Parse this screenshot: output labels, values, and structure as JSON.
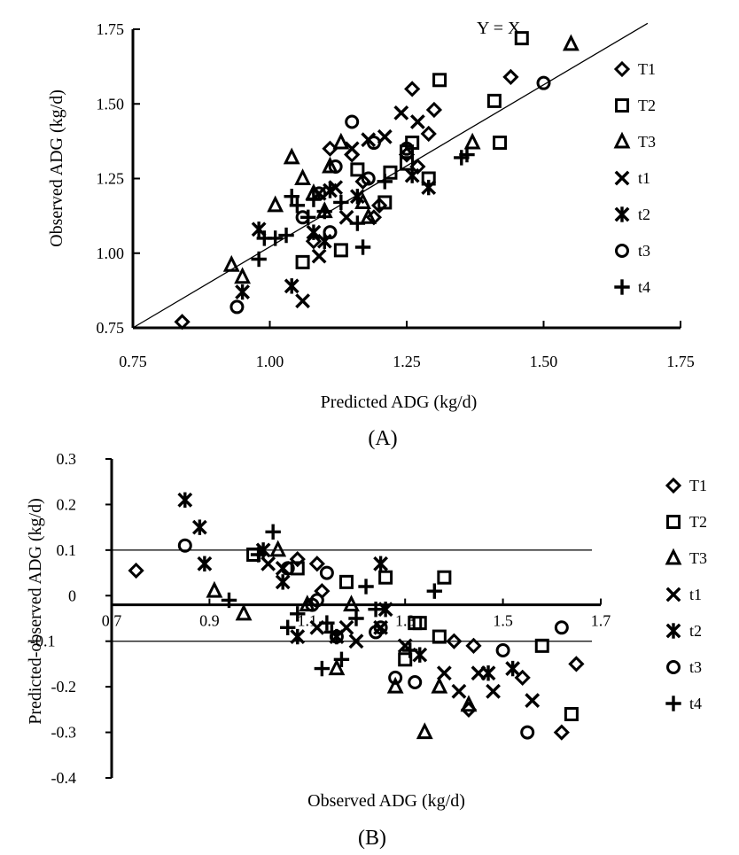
{
  "chart_data": [
    {
      "type": "scatter",
      "panel_label": "(A)",
      "xlabel": "Predicted ADG (kg/d)",
      "ylabel": "Observed ADG (kg/d)",
      "xlim": [
        0.75,
        1.75
      ],
      "ylim": [
        0.75,
        1.75
      ],
      "xticks": [
        "0.75",
        "1.00",
        "1.25",
        "1.50",
        "1.75"
      ],
      "yticks": [
        "0.75",
        "1.00",
        "1.25",
        "1.50",
        "1.75"
      ],
      "grid": false,
      "legend_position": "right",
      "reference_line": {
        "label": "Y = X",
        "slope": 1,
        "intercept": 0
      },
      "series": [
        {
          "name": "T1",
          "marker": "diamond",
          "x": [
            0.84,
            1.11,
            1.15,
            1.17,
            1.19,
            1.26,
            1.27,
            1.25,
            1.29,
            1.3,
            1.44,
            1.08,
            1.2
          ],
          "y": [
            0.77,
            1.35,
            1.33,
            1.24,
            1.12,
            1.55,
            1.29,
            1.33,
            1.4,
            1.48,
            1.59,
            1.04,
            1.16
          ]
        },
        {
          "name": "T2",
          "marker": "square",
          "x": [
            1.06,
            1.13,
            1.16,
            1.21,
            1.22,
            1.25,
            1.25,
            1.26,
            1.29,
            1.31,
            1.41,
            1.42,
            1.46
          ],
          "y": [
            0.97,
            1.01,
            1.28,
            1.17,
            1.27,
            1.3,
            1.34,
            1.37,
            1.25,
            1.58,
            1.51,
            1.37,
            1.72
          ]
        },
        {
          "name": "T3",
          "marker": "triangle",
          "x": [
            0.93,
            0.95,
            1.01,
            1.04,
            1.06,
            1.08,
            1.11,
            1.13,
            1.17,
            1.18,
            1.37,
            1.55,
            1.1
          ],
          "y": [
            0.96,
            0.92,
            1.16,
            1.32,
            1.25,
            1.2,
            1.29,
            1.37,
            1.17,
            1.12,
            1.37,
            1.7,
            1.14
          ]
        },
        {
          "name": "t1",
          "marker": "x",
          "x": [
            1.06,
            1.09,
            1.12,
            1.15,
            1.18,
            1.21,
            1.24,
            1.27,
            1.09,
            1.14
          ],
          "y": [
            0.84,
            0.99,
            1.22,
            1.35,
            1.38,
            1.39,
            1.47,
            1.44,
            1.2,
            1.12
          ]
        },
        {
          "name": "t2",
          "marker": "asterisk",
          "x": [
            0.95,
            0.98,
            1.04,
            1.08,
            1.11,
            1.26,
            1.29,
            1.16,
            1.1
          ],
          "y": [
            0.87,
            1.08,
            0.89,
            1.07,
            1.21,
            1.26,
            1.22,
            1.19,
            1.04
          ]
        },
        {
          "name": "t3",
          "marker": "circle",
          "x": [
            0.94,
            1.09,
            1.11,
            1.12,
            1.15,
            1.18,
            1.19,
            1.25,
            1.5,
            1.06
          ],
          "y": [
            0.82,
            1.2,
            1.07,
            1.29,
            1.44,
            1.25,
            1.37,
            1.35,
            1.57,
            1.12
          ]
        },
        {
          "name": "t4",
          "marker": "plus",
          "x": [
            0.98,
            0.99,
            1.01,
            1.03,
            1.04,
            1.05,
            1.07,
            1.1,
            1.13,
            1.17,
            1.21,
            1.35,
            1.36,
            1.08,
            1.16
          ],
          "y": [
            0.98,
            1.05,
            1.05,
            1.06,
            1.19,
            1.16,
            1.12,
            1.14,
            1.17,
            1.02,
            1.24,
            1.32,
            1.33,
            1.18,
            1.1
          ]
        }
      ]
    },
    {
      "type": "scatter",
      "panel_label": "(B)",
      "xlabel": "Observed ADG (kg/d)",
      "ylabel": "Predicted-observed ADG (kg/d)",
      "xlim": [
        0.7,
        1.7
      ],
      "ylim": [
        -0.4,
        0.3
      ],
      "xticks": [
        "0.7",
        "0.9",
        "1.1",
        "1.3",
        "1.5",
        "1.7"
      ],
      "yticks": [
        "0.3",
        "0.2",
        "0.1",
        "0",
        "-0.1",
        "-0.2",
        "-0.3",
        "-0.4"
      ],
      "grid": false,
      "legend_position": "right",
      "reference_lines_y": [
        0.1,
        -0.1
      ],
      "x_axis_at_y": -0.02,
      "series": [
        {
          "name": "T1",
          "marker": "diamond",
          "x": [
            0.75,
            1.08,
            1.12,
            1.13,
            1.4,
            1.43,
            1.44,
            1.54,
            1.62,
            1.65
          ],
          "y": [
            0.055,
            0.08,
            0.07,
            0.01,
            -0.1,
            -0.25,
            -0.11,
            -0.18,
            -0.3,
            -0.15
          ]
        },
        {
          "name": "T2",
          "marker": "square",
          "x": [
            0.99,
            1.08,
            1.18,
            1.26,
            1.3,
            1.32,
            1.33,
            1.37,
            1.38,
            1.58,
            1.64
          ],
          "y": [
            0.09,
            0.06,
            0.03,
            0.04,
            -0.14,
            -0.06,
            -0.06,
            -0.09,
            0.04,
            -0.11,
            -0.26
          ]
        },
        {
          "name": "T3",
          "marker": "triangle",
          "x": [
            0.91,
            0.97,
            1.04,
            1.1,
            1.16,
            1.19,
            1.28,
            1.34,
            1.37,
            1.43
          ],
          "y": [
            0.01,
            -0.04,
            0.1,
            -0.02,
            -0.16,
            -0.02,
            -0.2,
            -0.3,
            -0.2,
            -0.24
          ]
        },
        {
          "name": "t1",
          "marker": "x",
          "x": [
            1.02,
            1.05,
            1.12,
            1.18,
            1.2,
            1.25,
            1.3,
            1.38,
            1.41,
            1.45,
            1.48,
            1.56
          ],
          "y": [
            0.07,
            0.06,
            -0.07,
            -0.07,
            -0.1,
            -0.07,
            -0.11,
            -0.17,
            -0.21,
            -0.17,
            -0.21,
            -0.23
          ]
        },
        {
          "name": "t2",
          "marker": "asterisk",
          "x": [
            0.85,
            0.88,
            0.89,
            1.01,
            1.05,
            1.08,
            1.16,
            1.25,
            1.26,
            1.33,
            1.47,
            1.52
          ],
          "y": [
            0.21,
            0.15,
            0.07,
            0.1,
            0.03,
            -0.09,
            -0.09,
            0.07,
            -0.03,
            -0.13,
            -0.17,
            -0.16
          ]
        },
        {
          "name": "t3",
          "marker": "circle",
          "x": [
            0.85,
            1.06,
            1.11,
            1.12,
            1.14,
            1.16,
            1.24,
            1.25,
            1.28,
            1.32,
            1.5,
            1.55,
            1.62
          ],
          "y": [
            0.11,
            0.06,
            -0.02,
            -0.01,
            0.05,
            -0.09,
            -0.08,
            -0.07,
            -0.18,
            -0.19,
            -0.12,
            -0.3,
            -0.07
          ]
        },
        {
          "name": "t4",
          "marker": "plus",
          "x": [
            0.94,
            1.0,
            1.03,
            1.06,
            1.08,
            1.14,
            1.17,
            1.2,
            1.22,
            1.24,
            1.31,
            1.36,
            1.15,
            1.13
          ],
          "y": [
            -0.01,
            0.09,
            0.14,
            -0.07,
            -0.04,
            -0.06,
            -0.14,
            -0.05,
            0.02,
            -0.03,
            -0.12,
            0.01,
            -0.08,
            -0.16
          ]
        }
      ]
    }
  ]
}
